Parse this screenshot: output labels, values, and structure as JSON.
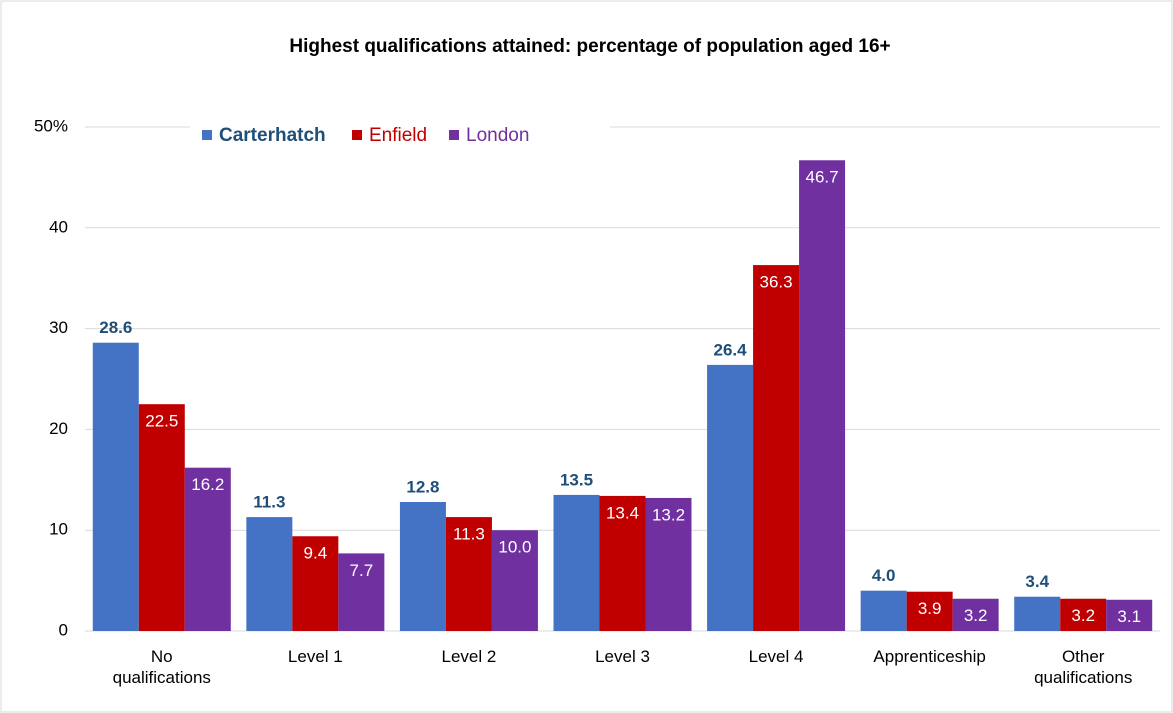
{
  "chart_data": {
    "type": "bar",
    "title": "Highest qualifications attained:  percentage of population aged 16+",
    "categories": [
      "No\nqualifications",
      "Level 1",
      "Level 2",
      "Level 3",
      "Level 4",
      "Apprenticeship",
      "Other\nqualifications"
    ],
    "series": [
      {
        "name": "Carterhatch",
        "color": "#4472c4",
        "values": [
          28.6,
          11.3,
          12.8,
          13.5,
          26.4,
          4.0,
          3.4
        ],
        "value_labels": [
          "28.6",
          "11.3",
          "12.8",
          "13.5",
          "26.4",
          "4.0",
          "3.4"
        ]
      },
      {
        "name": "Enfield",
        "color": "#c00000",
        "values": [
          22.5,
          9.4,
          11.3,
          13.4,
          36.3,
          3.9,
          3.2
        ],
        "value_labels": [
          "22.5",
          "9.4",
          "11.3",
          "13.4",
          "36.3",
          "3.9",
          "3.2"
        ]
      },
      {
        "name": "London",
        "color": "#7030a0",
        "values": [
          16.2,
          7.7,
          10.0,
          13.2,
          46.7,
          3.2,
          3.1
        ],
        "value_labels": [
          "16.2",
          "7.7",
          "10.0",
          "13.2",
          "46.7",
          "3.2",
          "3.1"
        ]
      }
    ],
    "ylim": [
      0,
      50
    ],
    "yticks": [
      0,
      10,
      20,
      30,
      40,
      {
        "value": 50,
        "label": "50%"
      }
    ],
    "grid": true,
    "legend": "top-left"
  }
}
